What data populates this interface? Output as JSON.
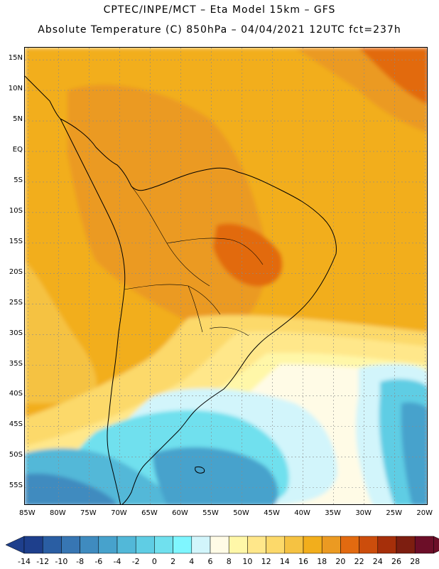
{
  "header": {
    "line1": "CPTEC/INPE/MCT –  Eta Model 15km – GFS",
    "line2": "Absolute Temperature (C) 850hPa – 04/04/2021 12UTC fct=237h"
  },
  "axes": {
    "latitudes": [
      {
        "label": "15N",
        "lat": 15
      },
      {
        "label": "10N",
        "lat": 10
      },
      {
        "label": "5N",
        "lat": 5
      },
      {
        "label": "EQ",
        "lat": 0
      },
      {
        "label": "5S",
        "lat": -5
      },
      {
        "label": "10S",
        "lat": -10
      },
      {
        "label": "15S",
        "lat": -15
      },
      {
        "label": "20S",
        "lat": -20
      },
      {
        "label": "25S",
        "lat": -25
      },
      {
        "label": "30S",
        "lat": -30
      },
      {
        "label": "35S",
        "lat": -35
      },
      {
        "label": "40S",
        "lat": -40
      },
      {
        "label": "45S",
        "lat": -45
      },
      {
        "label": "50S",
        "lat": -50
      },
      {
        "label": "55S",
        "lat": -55
      }
    ],
    "longitudes": [
      {
        "label": "85W",
        "lon": -85
      },
      {
        "label": "80W",
        "lon": -80
      },
      {
        "label": "75W",
        "lon": -75
      },
      {
        "label": "70W",
        "lon": -70
      },
      {
        "label": "65W",
        "lon": -65
      },
      {
        "label": "60W",
        "lon": -60
      },
      {
        "label": "55W",
        "lon": -55
      },
      {
        "label": "50W",
        "lon": -50
      },
      {
        "label": "45W",
        "lon": -45
      },
      {
        "label": "40W",
        "lon": -40
      },
      {
        "label": "35W",
        "lon": -35
      },
      {
        "label": "30W",
        "lon": -30
      },
      {
        "label": "25W",
        "lon": -25
      },
      {
        "label": "20W",
        "lon": -20
      }
    ],
    "lon_range": [
      -85.5,
      -19.5
    ],
    "lat_range": [
      -58,
      17
    ]
  },
  "colorbar": {
    "labels": [
      "-14",
      "-12",
      "-10",
      "-8",
      "-6",
      "-4",
      "-2",
      "0",
      "2",
      "4",
      "6",
      "8",
      "10",
      "12",
      "14",
      "16",
      "18",
      "20",
      "22",
      "24",
      "26",
      "28"
    ],
    "colors": [
      "#1e3f8c",
      "#2a5ea3",
      "#3776b3",
      "#3f8bbf",
      "#47a2cc",
      "#52b8d8",
      "#5fcde4",
      "#70e0ee",
      "#7ff6ff",
      "#d2f5fb",
      "#fffbe6",
      "#fff7a8",
      "#ffe78a",
      "#fcd96a",
      "#f5c242",
      "#f2ae1c",
      "#eb9a22",
      "#e26a10",
      "#cc4d0c",
      "#a62f0a",
      "#7d1e10",
      "#6c0e28"
    ]
  },
  "map": {
    "ocean_color": "#f2ae1c",
    "grid_color": "#8a8a8a"
  }
}
